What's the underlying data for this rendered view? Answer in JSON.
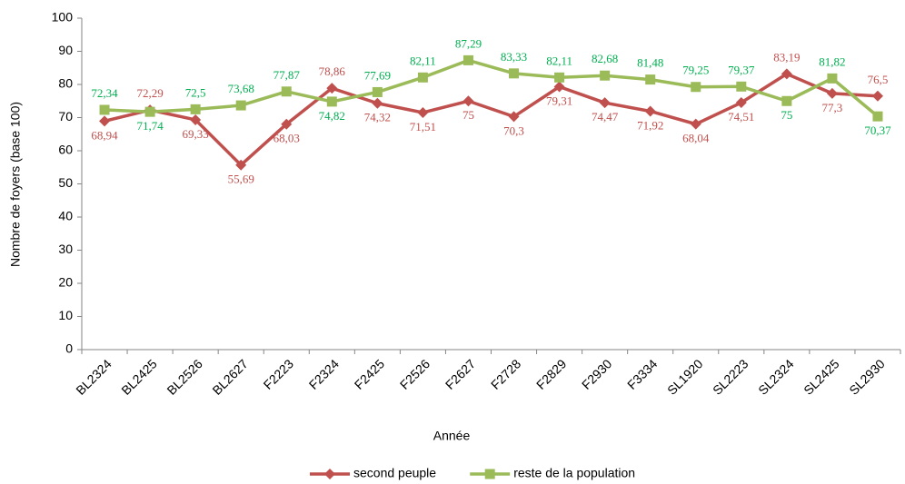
{
  "chart_data": {
    "type": "line",
    "x_label": "Année",
    "y_label": "Nombre de foyers (base 100)",
    "categories": [
      "BL2324",
      "BL2425",
      "BL2526",
      "BL2627",
      "F2223",
      "F2324",
      "F2425",
      "F2526",
      "F2627",
      "F2728",
      "F2829",
      "F2930",
      "F3334",
      "SL1920",
      "SL2223",
      "SL2324",
      "SL2425",
      "SL2930"
    ],
    "series": [
      {
        "name": "second peuple",
        "color": "#c0504d",
        "label_color": "#c0504d",
        "marker": "diamond",
        "values": [
          68.94,
          72.29,
          69.33,
          55.69,
          68.03,
          78.86,
          74.32,
          71.51,
          75,
          70.3,
          79.31,
          74.47,
          71.92,
          68.04,
          74.51,
          83.19,
          77.3,
          76.5
        ],
        "value_labels": [
          "68,94",
          "72,29",
          "69,33",
          "55,69",
          "68,03",
          "78,86",
          "74,32",
          "71,51",
          "75",
          "70,3",
          "79,31",
          "74,47",
          "71,92",
          "68,04",
          "74,51",
          "83,19",
          "77,3",
          "76,5"
        ]
      },
      {
        "name": "reste de la population",
        "color": "#9bbb59",
        "label_color": "#00b050",
        "marker": "square",
        "values": [
          72.34,
          71.74,
          72.5,
          73.68,
          77.87,
          74.82,
          77.69,
          82.11,
          87.29,
          83.33,
          82.11,
          82.68,
          81.48,
          79.25,
          79.37,
          75,
          81.82,
          70.37
        ],
        "value_labels": [
          "72,34",
          "71,74",
          "72,5",
          "73,68",
          "77,87",
          "74,82",
          "77,69",
          "82,11",
          "87,29",
          "83,33",
          "82,11",
          "82,68",
          "81,48",
          "79,25",
          "79,37",
          "75",
          "81,82",
          "70,37"
        ]
      }
    ],
    "ylim": [
      0,
      100
    ],
    "yticks": [
      0,
      10,
      20,
      30,
      40,
      50,
      60,
      70,
      80,
      90,
      100
    ],
    "grid": false,
    "legend": "bottom"
  }
}
